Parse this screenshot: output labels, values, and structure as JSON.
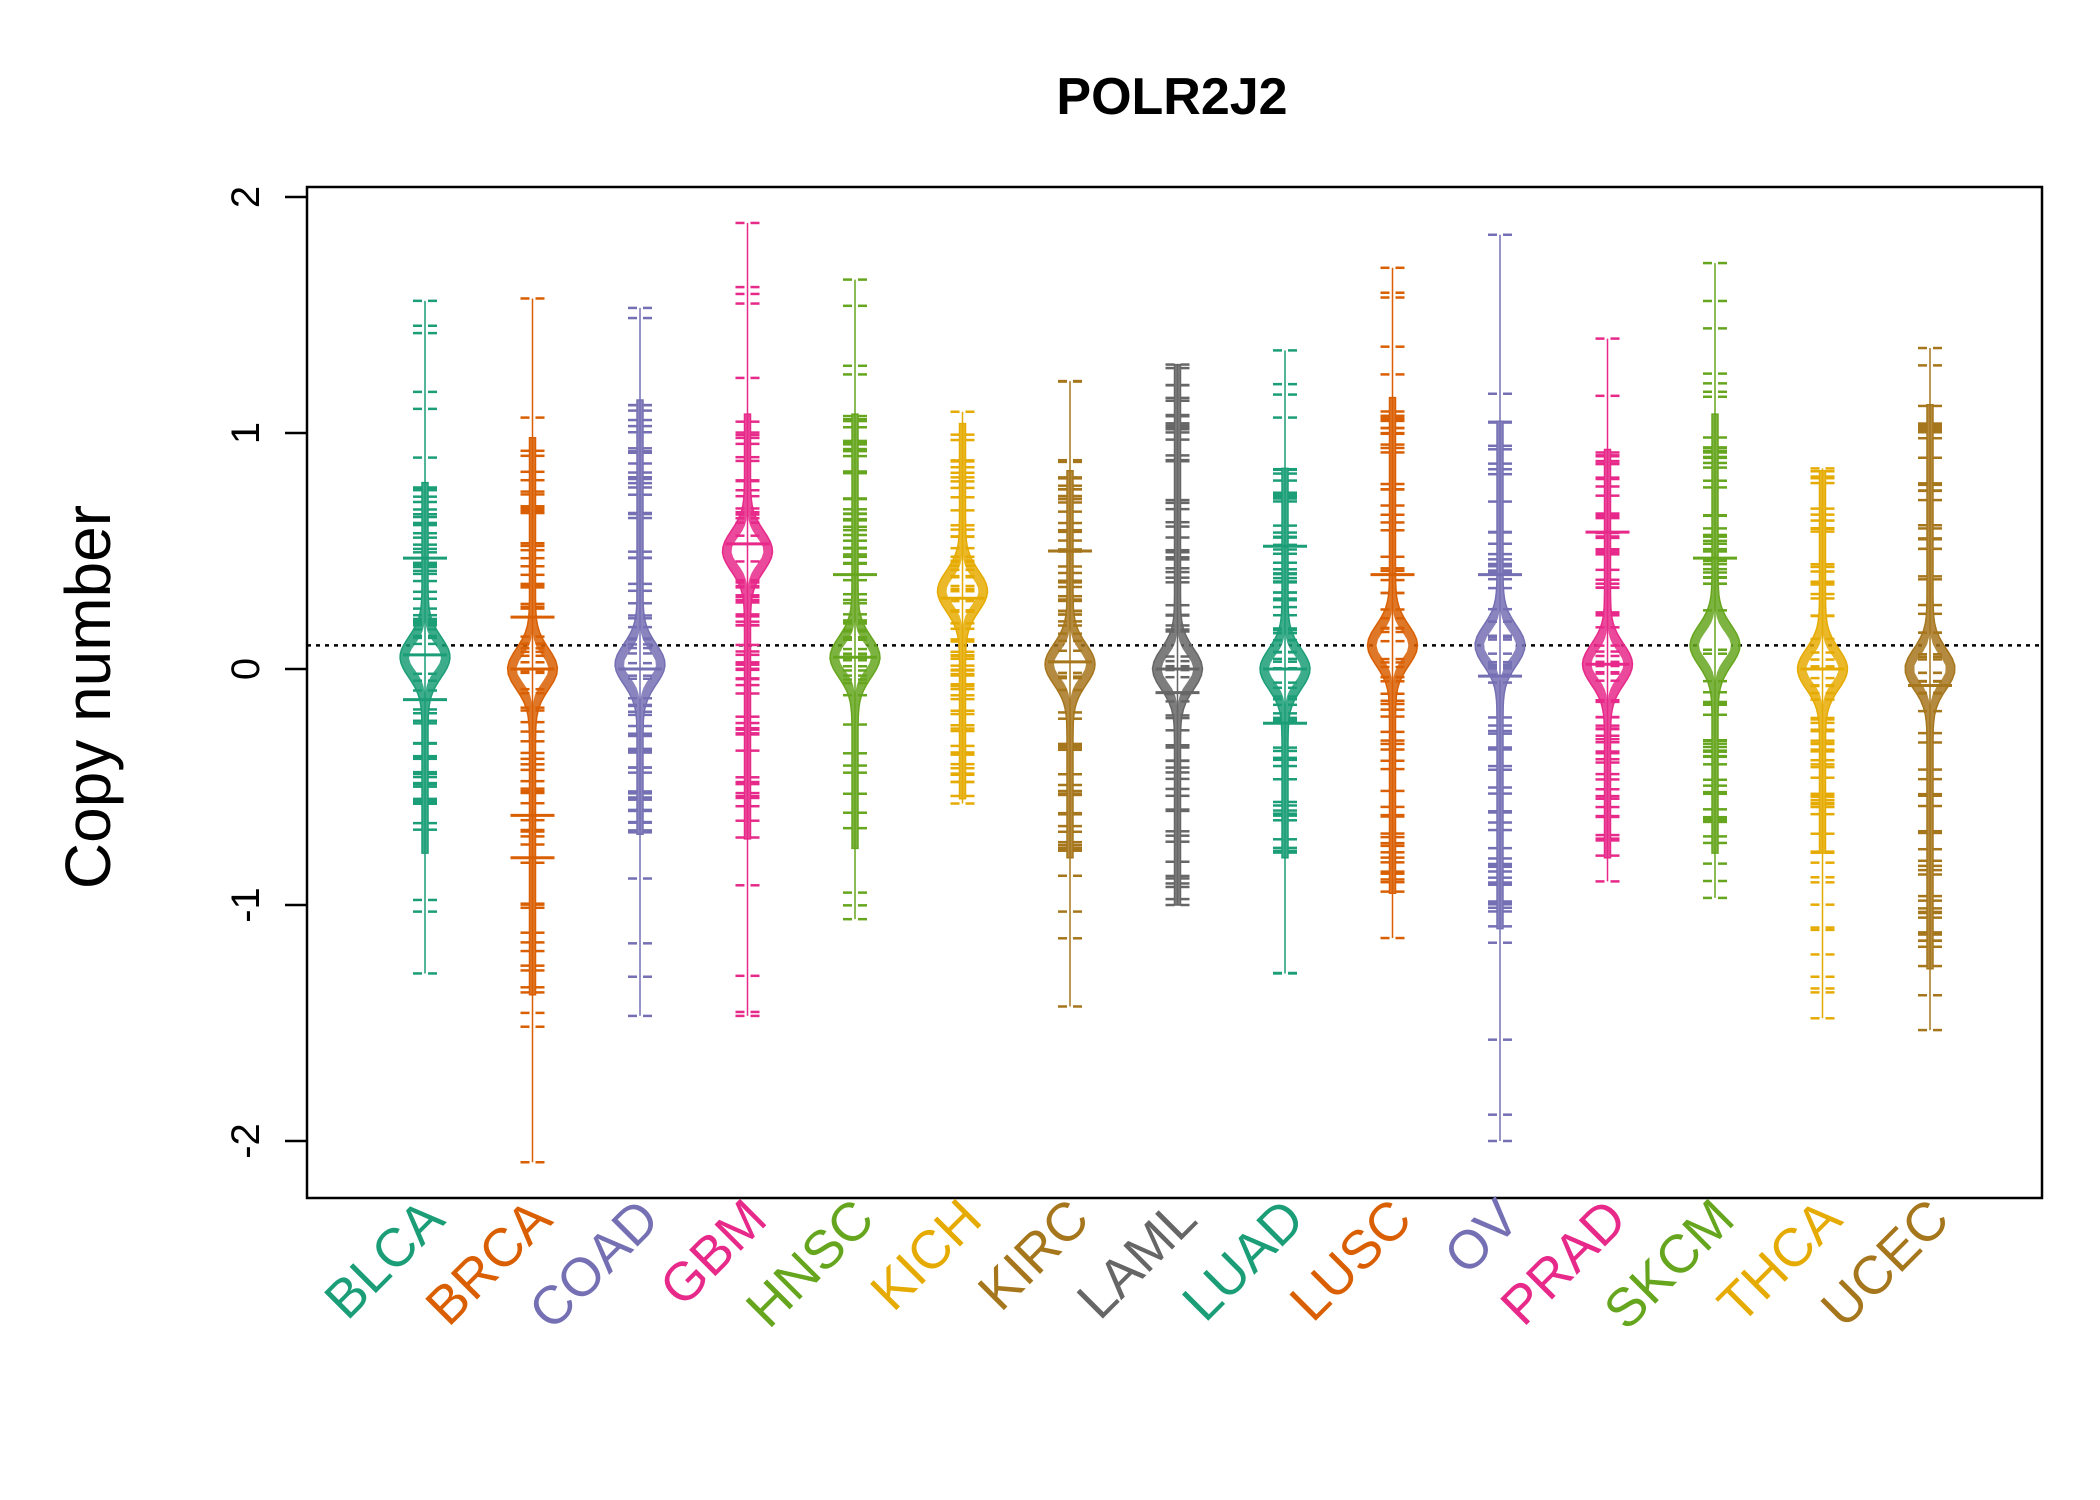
{
  "chart_data": {
    "type": "beanplot",
    "title": "POLR2J2",
    "ylabel": "Copy number",
    "xlabel": "",
    "ylim": [
      -2.2,
      2.05
    ],
    "yticks": [
      -2,
      -1,
      0,
      1,
      2
    ],
    "reference_line": 0.1,
    "categories": [
      "BLCA",
      "BRCA",
      "COAD",
      "GBM",
      "HNSC",
      "KICH",
      "KIRC",
      "LAML",
      "LUAD",
      "LUSC",
      "OV",
      "PRAD",
      "SKCM",
      "THCA",
      "UCEC"
    ],
    "colors": [
      "#1B9E77",
      "#D95F02",
      "#7570B3",
      "#E7298A",
      "#66A61E",
      "#E6AB02",
      "#A6761D",
      "#666666",
      "#1B9E77",
      "#D95F02",
      "#7570B3",
      "#E7298A",
      "#66A61E",
      "#E6AB02",
      "#A6761D"
    ],
    "series": [
      {
        "name": "BLCA",
        "min": -1.29,
        "max": 1.56,
        "density_peaks": [
          0.05
        ],
        "spread": [
          -0.78,
          0.79
        ],
        "medians": [
          0.47,
          0.06,
          -0.13
        ]
      },
      {
        "name": "BRCA",
        "min": -2.09,
        "max": 1.57,
        "density_peaks": [
          0.0
        ],
        "spread": [
          -1.38,
          0.98
        ],
        "medians": [
          0.22,
          0.0,
          -0.62,
          -0.8
        ]
      },
      {
        "name": "COAD",
        "min": -1.47,
        "max": 1.53,
        "density_peaks": [
          0.02
        ],
        "spread": [
          -0.7,
          1.14
        ],
        "medians": [
          0.0
        ]
      },
      {
        "name": "GBM",
        "min": -1.47,
        "max": 1.89,
        "density_peaks": [
          0.5
        ],
        "spread": [
          -0.72,
          1.08
        ],
        "medians": [
          0.53
        ]
      },
      {
        "name": "HNSC",
        "min": -1.06,
        "max": 1.65,
        "density_peaks": [
          0.05
        ],
        "spread": [
          -0.76,
          1.08
        ],
        "medians": [
          0.4,
          0.05
        ]
      },
      {
        "name": "KICH",
        "min": -0.57,
        "max": 1.09,
        "density_peaks": [
          0.33
        ],
        "spread": [
          -0.55,
          1.04
        ],
        "medians": [
          0.3
        ]
      },
      {
        "name": "KIRC",
        "min": -1.43,
        "max": 1.22,
        "density_peaks": [
          0.02
        ],
        "spread": [
          -0.8,
          0.84
        ],
        "medians": [
          0.5,
          0.03
        ]
      },
      {
        "name": "LAML",
        "min": -1.0,
        "max": 1.29,
        "density_peaks": [
          0.0
        ],
        "spread": [
          -1.0,
          1.29
        ],
        "medians": [
          0.0,
          -0.1
        ]
      },
      {
        "name": "LUAD",
        "min": -1.29,
        "max": 1.35,
        "density_peaks": [
          0.0
        ],
        "spread": [
          -0.8,
          0.85
        ],
        "medians": [
          0.52,
          0.0,
          -0.23
        ]
      },
      {
        "name": "LUSC",
        "min": -1.14,
        "max": 1.7,
        "density_peaks": [
          0.1
        ],
        "spread": [
          -0.95,
          1.15
        ],
        "medians": [
          0.4
        ]
      },
      {
        "name": "OV",
        "min": -2.0,
        "max": 1.84,
        "density_peaks": [
          0.1
        ],
        "spread": [
          -1.1,
          1.05
        ],
        "medians": [
          0.4,
          -0.03
        ]
      },
      {
        "name": "PRAD",
        "min": -0.9,
        "max": 1.4,
        "density_peaks": [
          0.02
        ],
        "spread": [
          -0.8,
          0.93
        ],
        "medians": [
          0.58,
          0.02
        ]
      },
      {
        "name": "SKCM",
        "min": -0.97,
        "max": 1.72,
        "density_peaks": [
          0.1
        ],
        "spread": [
          -0.78,
          1.08
        ],
        "medians": [
          0.47
        ]
      },
      {
        "name": "THCA",
        "min": -1.48,
        "max": 0.85,
        "density_peaks": [
          0.0
        ],
        "spread": [
          -0.78,
          0.84
        ],
        "medians": [
          0.0
        ]
      },
      {
        "name": "UCEC",
        "min": -1.53,
        "max": 1.36,
        "density_peaks": [
          0.0
        ],
        "spread": [
          -1.27,
          1.12
        ],
        "medians": [
          -0.07
        ]
      }
    ]
  }
}
